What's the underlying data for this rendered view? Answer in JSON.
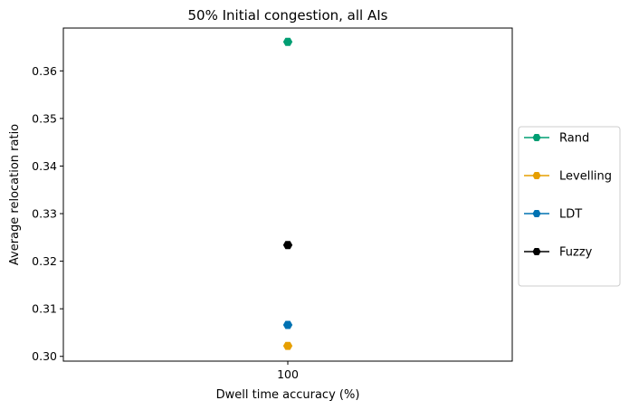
{
  "chart_data": {
    "type": "scatter",
    "title": "50% Initial congestion, all AIs",
    "xlabel": "Dwell time accuracy (%)",
    "ylabel": "Average relocation ratio",
    "categories": [
      "100"
    ],
    "ylim": [
      0.299,
      0.369
    ],
    "yticks": [
      0.3,
      0.31,
      0.32,
      0.33,
      0.34,
      0.35,
      0.36
    ],
    "ytick_labels": [
      "0.30",
      "0.31",
      "0.32",
      "0.33",
      "0.34",
      "0.35",
      "0.36"
    ],
    "grid": false,
    "legend_position": "right",
    "series": [
      {
        "name": "Rand",
        "color": "#009e73",
        "values": [
          0.3661
        ]
      },
      {
        "name": "Levelling",
        "color": "#e69f00",
        "values": [
          0.3022
        ]
      },
      {
        "name": "LDT",
        "color": "#0072b2",
        "values": [
          0.3066
        ]
      },
      {
        "name": "Fuzzy",
        "color": "#000000",
        "values": [
          0.3234
        ]
      }
    ]
  }
}
